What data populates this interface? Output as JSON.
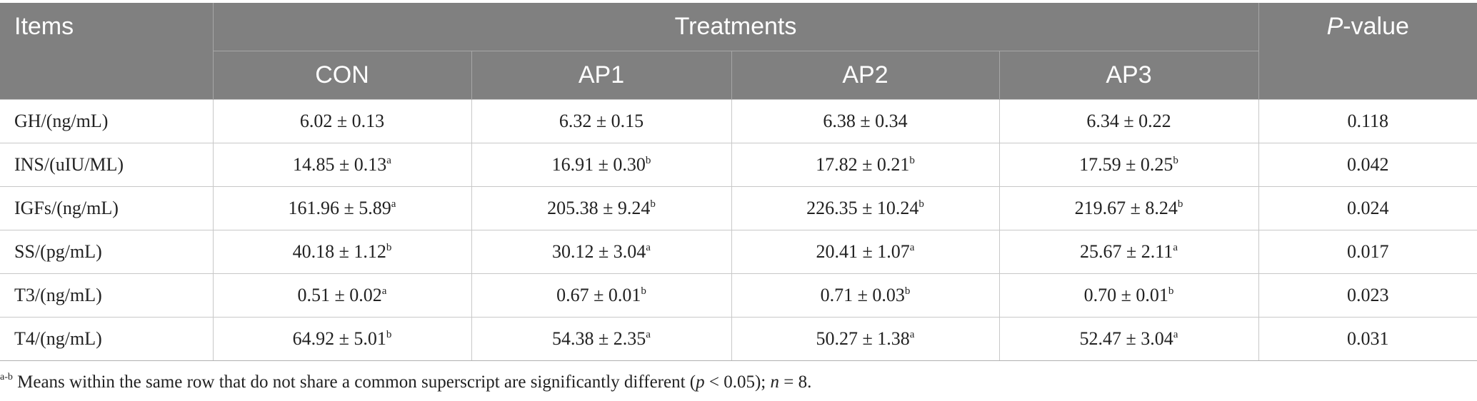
{
  "table": {
    "header": {
      "items": "Items",
      "treatments": "Treatments",
      "p_prefix": "P",
      "p_suffix": "-value",
      "groups": [
        "CON",
        "AP1",
        "AP2",
        "AP3"
      ]
    },
    "rows": [
      {
        "label": "GH/(ng/mL)",
        "cells": [
          {
            "v": "6.02 ± 0.13",
            "s": ""
          },
          {
            "v": "6.32 ± 0.15",
            "s": ""
          },
          {
            "v": "6.38 ± 0.34",
            "s": ""
          },
          {
            "v": "6.34 ± 0.22",
            "s": ""
          }
        ],
        "p": "0.118"
      },
      {
        "label": "INS/(uIU/ML)",
        "cells": [
          {
            "v": "14.85 ± 0.13",
            "s": "a"
          },
          {
            "v": "16.91 ± 0.30",
            "s": "b"
          },
          {
            "v": "17.82 ± 0.21",
            "s": "b"
          },
          {
            "v": "17.59 ± 0.25",
            "s": "b"
          }
        ],
        "p": "0.042"
      },
      {
        "label": "IGFs/(ng/mL)",
        "cells": [
          {
            "v": "161.96 ± 5.89",
            "s": "a"
          },
          {
            "v": "205.38 ± 9.24",
            "s": "b"
          },
          {
            "v": "226.35 ± 10.24",
            "s": "b"
          },
          {
            "v": "219.67 ± 8.24",
            "s": "b"
          }
        ],
        "p": "0.024"
      },
      {
        "label": "SS/(pg/mL)",
        "cells": [
          {
            "v": "40.18 ± 1.12",
            "s": "b"
          },
          {
            "v": "30.12 ± 3.04",
            "s": "a"
          },
          {
            "v": "20.41 ± 1.07",
            "s": "a"
          },
          {
            "v": "25.67 ± 2.11",
            "s": "a"
          }
        ],
        "p": "0.017"
      },
      {
        "label": "T3/(ng/mL)",
        "cells": [
          {
            "v": "0.51 ± 0.02",
            "s": "a"
          },
          {
            "v": "0.67 ± 0.01",
            "s": "b"
          },
          {
            "v": "0.71 ± 0.03",
            "s": "b"
          },
          {
            "v": "0.70 ± 0.01",
            "s": "b"
          }
        ],
        "p": "0.023"
      },
      {
        "label": "T4/(ng/mL)",
        "cells": [
          {
            "v": "64.92 ± 5.01",
            "s": "b"
          },
          {
            "v": "54.38 ± 2.35",
            "s": "a"
          },
          {
            "v": "50.27 ± 1.38",
            "s": "a"
          },
          {
            "v": "52.47 ± 3.04",
            "s": "a"
          }
        ],
        "p": "0.031"
      }
    ]
  },
  "footnote": {
    "sup": "a-b",
    "text1": " Means within the same row that do not share a common superscript are significantly different (",
    "p_sym": "p",
    "text2": " < 0.05); ",
    "n_sym": "n",
    "text3": " = 8."
  },
  "colors": {
    "header_bg": "#808080",
    "header_text": "#ffffff",
    "border": "#c8c8c8"
  }
}
